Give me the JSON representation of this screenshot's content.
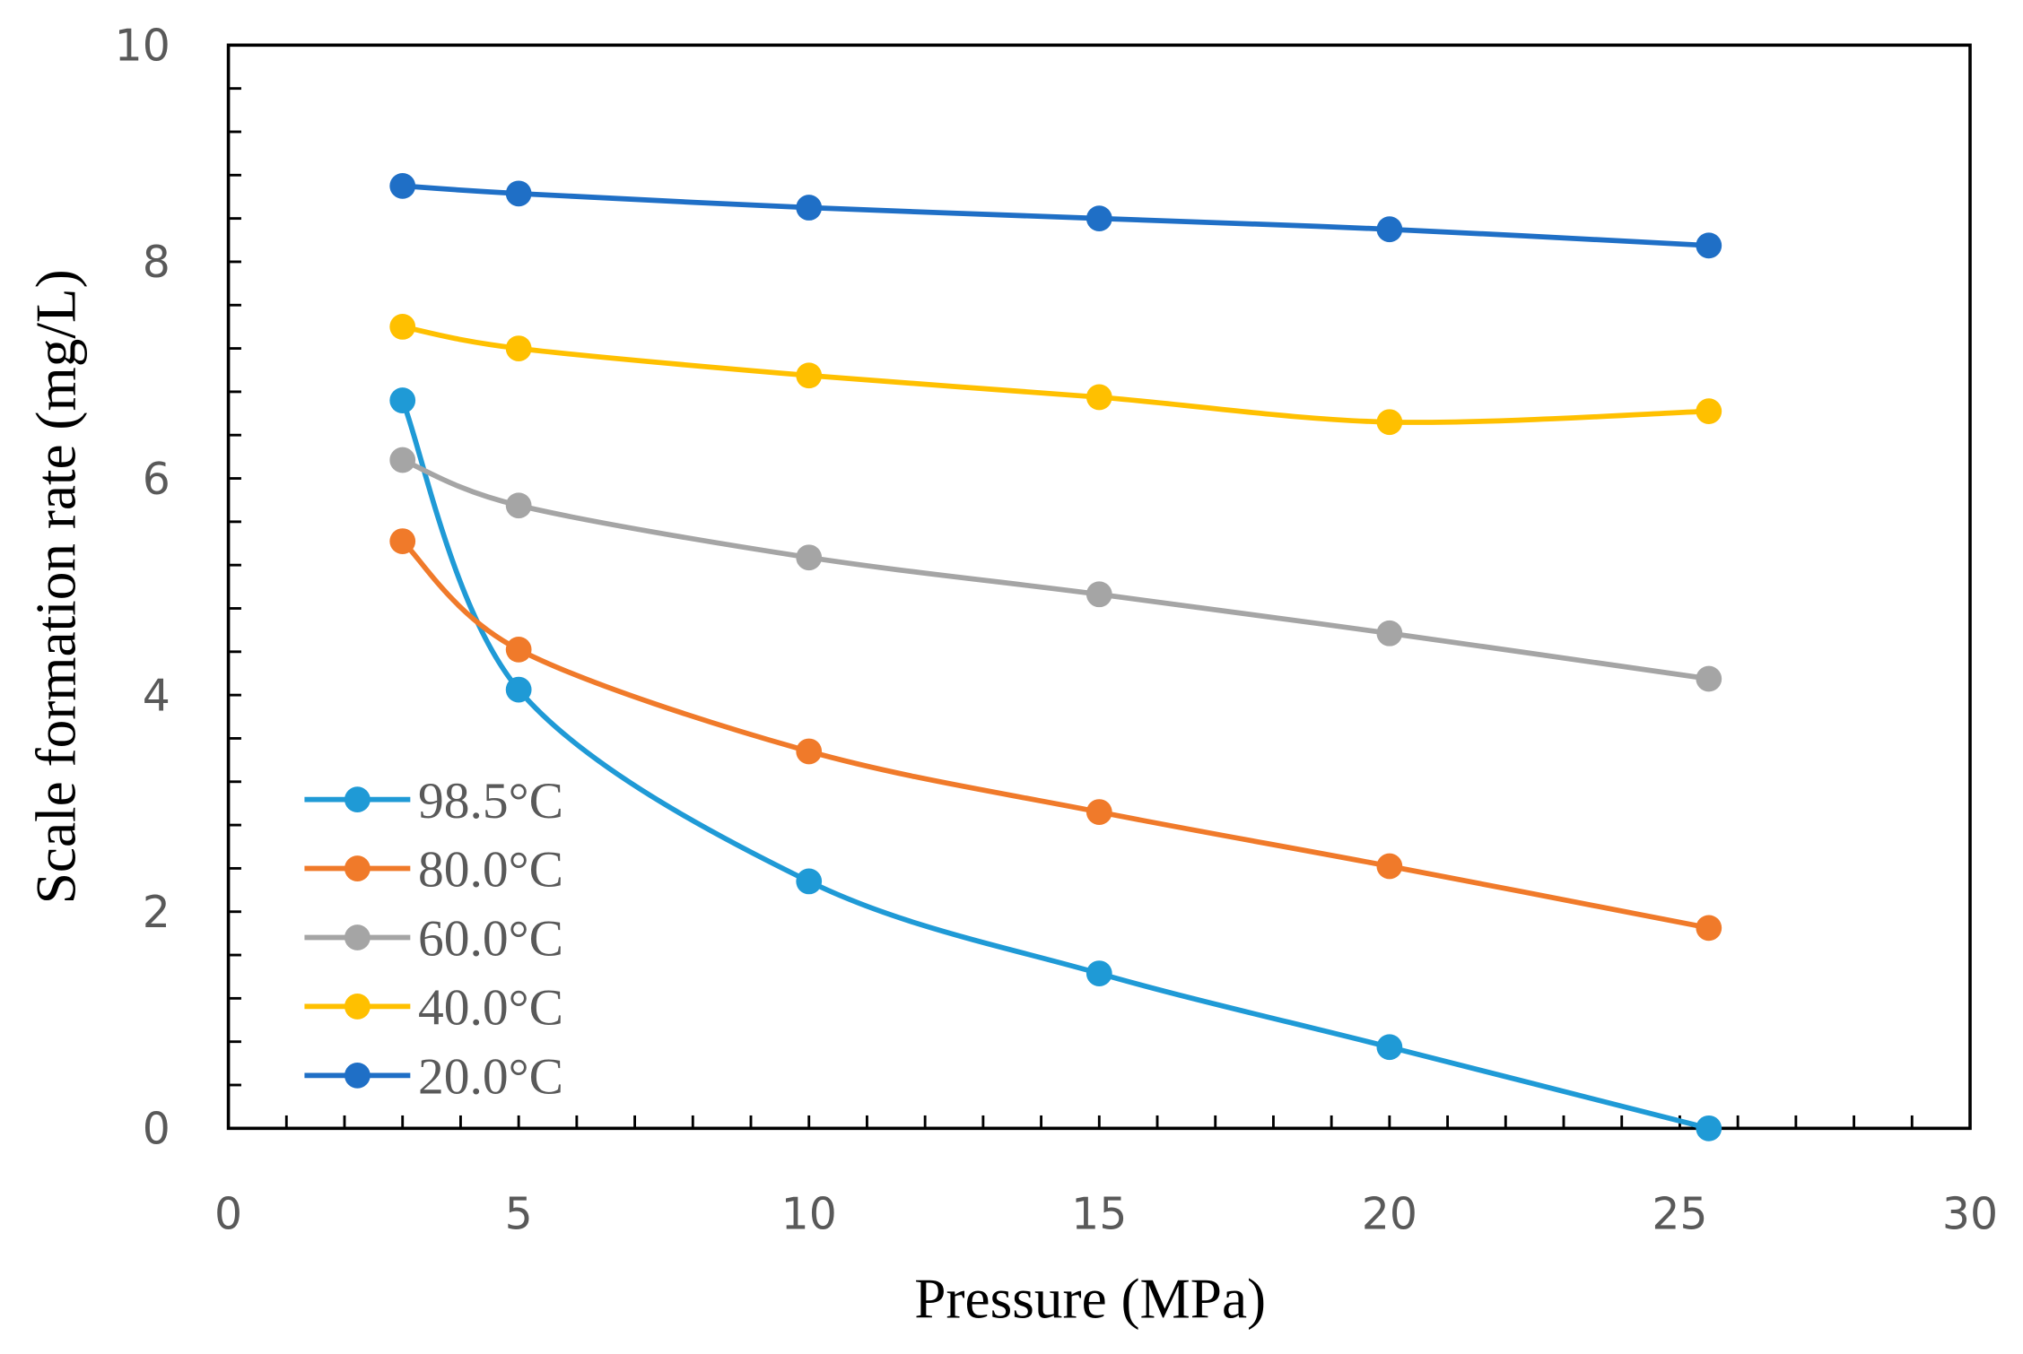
{
  "chart_data": {
    "type": "line",
    "xlabel": "Pressure (MPa)",
    "ylabel": "Scale formation rate (mg/L)",
    "xlim": [
      0,
      30
    ],
    "ylim": [
      0,
      10
    ],
    "xticks": [
      "0",
      "5",
      "10",
      "15",
      "20",
      "25",
      "30"
    ],
    "yticks": [
      "0",
      "2",
      "4",
      "6",
      "8",
      "10"
    ],
    "grid": false,
    "legend_position": "bottom-left",
    "x": [
      3,
      5,
      10,
      15,
      20,
      25.5
    ],
    "series": [
      {
        "name": "98.5°C",
        "color": "#1f9ad6",
        "values": [
          6.72,
          4.05,
          2.28,
          1.43,
          0.75,
          0.0
        ]
      },
      {
        "name": "80.0°C",
        "color": "#f07a2a",
        "values": [
          5.42,
          4.42,
          3.48,
          2.92,
          2.42,
          1.85
        ]
      },
      {
        "name": "60.0°C",
        "color": "#a5a5a5",
        "values": [
          6.17,
          5.75,
          5.27,
          4.93,
          4.57,
          4.15
        ]
      },
      {
        "name": "40.0°C",
        "color": "#ffc000",
        "values": [
          7.4,
          7.2,
          6.95,
          6.75,
          6.52,
          6.62
        ]
      },
      {
        "name": "20.0°C",
        "color": "#1f6fc6",
        "values": [
          8.7,
          8.63,
          8.5,
          8.4,
          8.3,
          8.15
        ]
      }
    ]
  }
}
